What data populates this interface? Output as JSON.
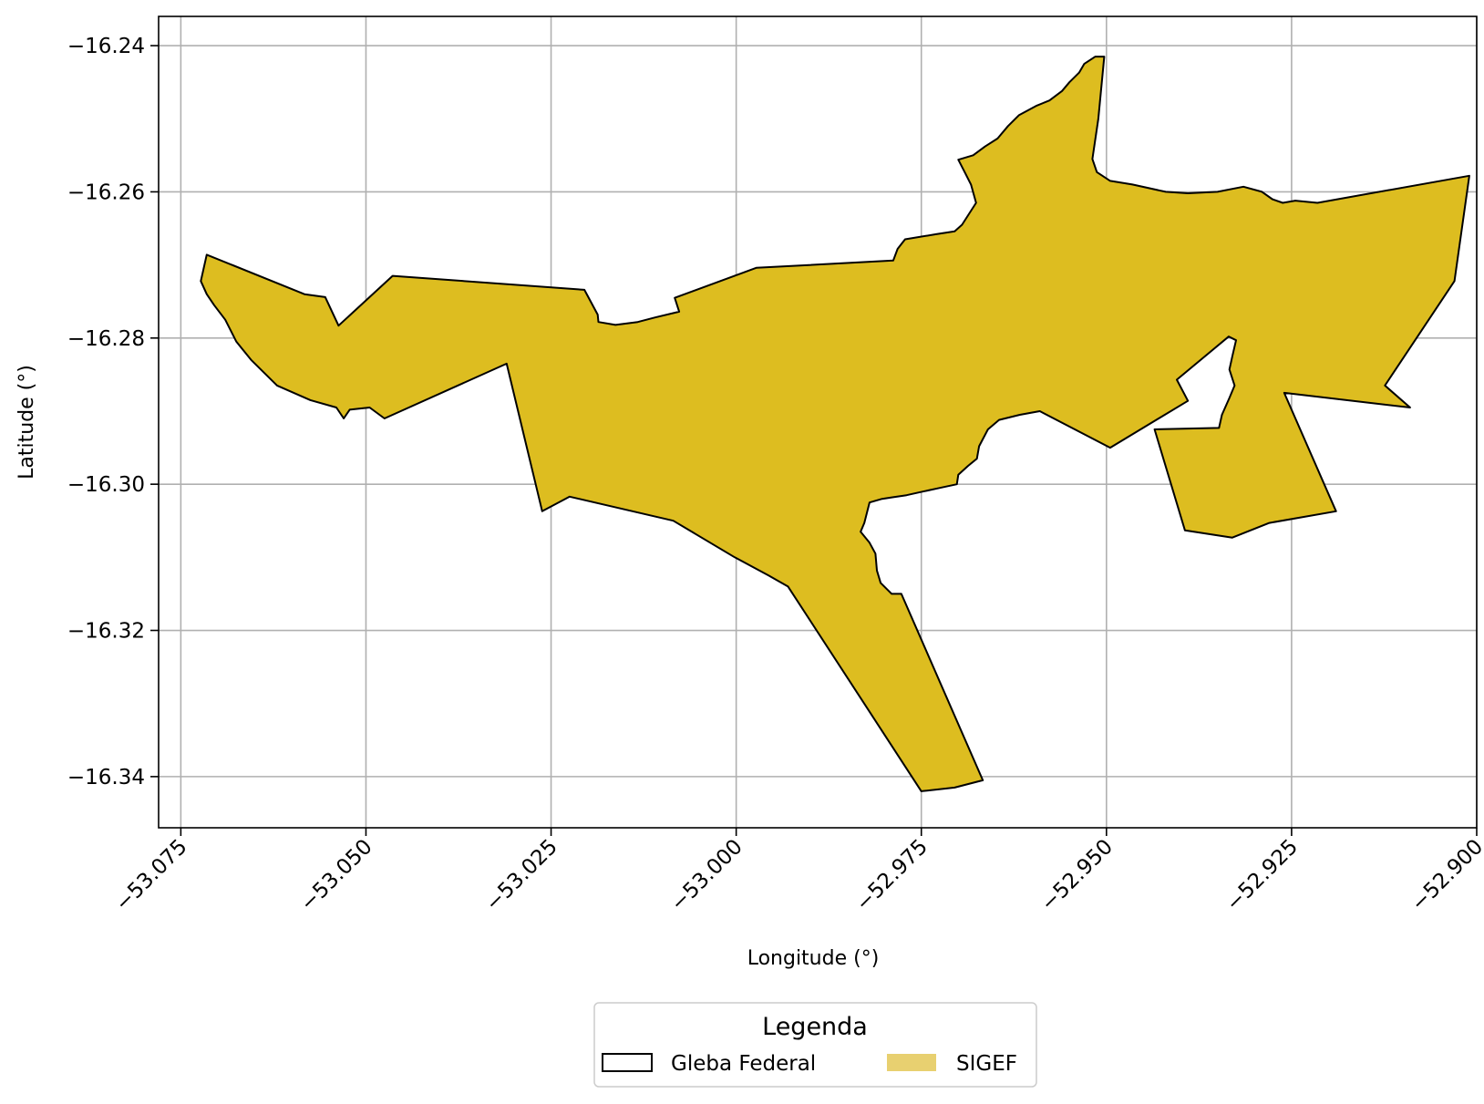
{
  "chart_data": {
    "type": "map",
    "title": "",
    "xlabel": "Longitude (°)",
    "ylabel": "Latitude (°)",
    "xlim": [
      -53.078,
      -52.9
    ],
    "ylim": [
      -16.347,
      -16.236
    ],
    "grid": true,
    "x_ticks": [
      -53.075,
      -53.05,
      -53.025,
      -53.0,
      -52.975,
      -52.95,
      -52.925,
      -52.9
    ],
    "x_tick_labels": [
      "−53.075",
      "−53.050",
      "−53.025",
      "−53.000",
      "−52.975",
      "−52.950",
      "−52.925",
      "−52.900"
    ],
    "y_ticks": [
      -16.24,
      -16.26,
      -16.28,
      -16.3,
      -16.32,
      -16.34
    ],
    "y_tick_labels": [
      "−16.24",
      "−16.26",
      "−16.28",
      "−16.30",
      "−16.32",
      "−16.34"
    ],
    "legend": {
      "title": "Legenda",
      "placement": "bottom-center",
      "entries": [
        {
          "label": "Gleba Federal",
          "style": "outline",
          "edge_color": "#000000"
        },
        {
          "label": "SIGEF",
          "style": "fill",
          "color": "#E8D070"
        }
      ]
    },
    "polygon_fill": "#DDBD20",
    "polygon_edge": "#000000",
    "polygon": [
      [
        -53.0723,
        -16.2722
      ],
      [
        -53.0715,
        -16.2686
      ],
      [
        -53.0583,
        -16.274
      ],
      [
        -53.0555,
        -16.2744
      ],
      [
        -53.0537,
        -16.2783
      ],
      [
        -53.0464,
        -16.2715
      ],
      [
        -53.0205,
        -16.2734
      ],
      [
        -53.0187,
        -16.2768
      ],
      [
        -53.0186,
        -16.2778
      ],
      [
        -53.0163,
        -16.2782
      ],
      [
        -53.0133,
        -16.2778
      ],
      [
        -53.011,
        -16.2772
      ],
      [
        -53.0077,
        -16.2764
      ],
      [
        -53.0083,
        -16.2745
      ],
      [
        -52.9973,
        -16.2704
      ],
      [
        -52.9788,
        -16.2694
      ],
      [
        -52.9782,
        -16.2678
      ],
      [
        -52.9772,
        -16.2665
      ],
      [
        -52.973,
        -16.2658
      ],
      [
        -52.9705,
        -16.2654
      ],
      [
        -52.9695,
        -16.2645
      ],
      [
        -52.9676,
        -16.2615
      ],
      [
        -52.9683,
        -16.259
      ],
      [
        -52.9691,
        -16.2574
      ],
      [
        -52.97,
        -16.2556
      ],
      [
        -52.968,
        -16.255
      ],
      [
        -52.9664,
        -16.2538
      ],
      [
        -52.9647,
        -16.2527
      ],
      [
        -52.9633,
        -16.251
      ],
      [
        -52.9618,
        -16.2495
      ],
      [
        -52.9594,
        -16.2482
      ],
      [
        -52.9577,
        -16.2475
      ],
      [
        -52.956,
        -16.2462
      ],
      [
        -52.955,
        -16.245
      ],
      [
        -52.9537,
        -16.2437
      ],
      [
        -52.953,
        -16.2425
      ],
      [
        -52.9515,
        -16.2415
      ],
      [
        -52.9503,
        -16.2415
      ],
      [
        -52.9511,
        -16.25
      ],
      [
        -52.9519,
        -16.2555
      ],
      [
        -52.9513,
        -16.2573
      ],
      [
        -52.9495,
        -16.2585
      ],
      [
        -52.9465,
        -16.259
      ],
      [
        -52.942,
        -16.26
      ],
      [
        -52.939,
        -16.2602
      ],
      [
        -52.935,
        -16.26
      ],
      [
        -52.9315,
        -16.2593
      ],
      [
        -52.929,
        -16.26
      ],
      [
        -52.9276,
        -16.261
      ],
      [
        -52.9262,
        -16.2615
      ],
      [
        -52.9245,
        -16.2612
      ],
      [
        -52.9215,
        -16.2615
      ],
      [
        -52.901,
        -16.2578
      ],
      [
        -52.903,
        -16.2722
      ],
      [
        -52.9124,
        -16.2865
      ],
      [
        -52.909,
        -16.2895
      ],
      [
        -52.926,
        -16.2875
      ],
      [
        -52.919,
        -16.3037
      ],
      [
        -52.928,
        -16.3053
      ],
      [
        -52.933,
        -16.3073
      ],
      [
        -52.9394,
        -16.3063
      ],
      [
        -52.9435,
        -16.2925
      ],
      [
        -52.9348,
        -16.2923
      ],
      [
        -52.9344,
        -16.2905
      ],
      [
        -52.9334,
        -16.2882
      ],
      [
        -52.9327,
        -16.2865
      ],
      [
        -52.9334,
        -16.2843
      ],
      [
        -52.933,
        -16.2825
      ],
      [
        -52.9325,
        -16.2803
      ],
      [
        -52.9335,
        -16.2798
      ],
      [
        -52.9405,
        -16.2857
      ],
      [
        -52.939,
        -16.2886
      ],
      [
        -52.9495,
        -16.295
      ],
      [
        -52.959,
        -16.29
      ],
      [
        -52.9617,
        -16.2905
      ],
      [
        -52.9645,
        -16.2912
      ],
      [
        -52.966,
        -16.2925
      ],
      [
        -52.9672,
        -16.2948
      ],
      [
        -52.9675,
        -16.2965
      ],
      [
        -52.9687,
        -16.2975
      ],
      [
        -52.97,
        -16.2987
      ],
      [
        -52.9702,
        -16.3
      ],
      [
        -52.9725,
        -16.3005
      ],
      [
        -52.9748,
        -16.301
      ],
      [
        -52.977,
        -16.3015
      ],
      [
        -52.979,
        -16.3018
      ],
      [
        -52.9803,
        -16.302
      ],
      [
        -52.982,
        -16.3025
      ],
      [
        -52.9827,
        -16.3053
      ],
      [
        -52.9832,
        -16.3065
      ],
      [
        -52.982,
        -16.308
      ],
      [
        -52.9812,
        -16.3095
      ],
      [
        -52.981,
        -16.3118
      ],
      [
        -52.9805,
        -16.3135
      ],
      [
        -52.979,
        -16.315
      ],
      [
        -52.9777,
        -16.315
      ],
      [
        -52.9667,
        -16.3405
      ],
      [
        -52.9705,
        -16.3415
      ],
      [
        -52.975,
        -16.342
      ],
      [
        -52.993,
        -16.314
      ],
      [
        -52.9956,
        -16.3125
      ],
      [
        -53.0002,
        -16.31
      ],
      [
        -53.0085,
        -16.305
      ],
      [
        -53.0225,
        -16.3017
      ],
      [
        -53.0262,
        -16.3037
      ],
      [
        -53.031,
        -16.2835
      ],
      [
        -53.0475,
        -16.291
      ],
      [
        -53.0495,
        -16.2895
      ],
      [
        -53.0522,
        -16.2898
      ],
      [
        -53.053,
        -16.291
      ],
      [
        -53.054,
        -16.2895
      ],
      [
        -53.0575,
        -16.2885
      ],
      [
        -53.062,
        -16.2865
      ],
      [
        -53.0655,
        -16.283
      ],
      [
        -53.0675,
        -16.2805
      ],
      [
        -53.069,
        -16.2775
      ],
      [
        -53.0705,
        -16.2755
      ],
      [
        -53.0715,
        -16.274
      ]
    ]
  }
}
